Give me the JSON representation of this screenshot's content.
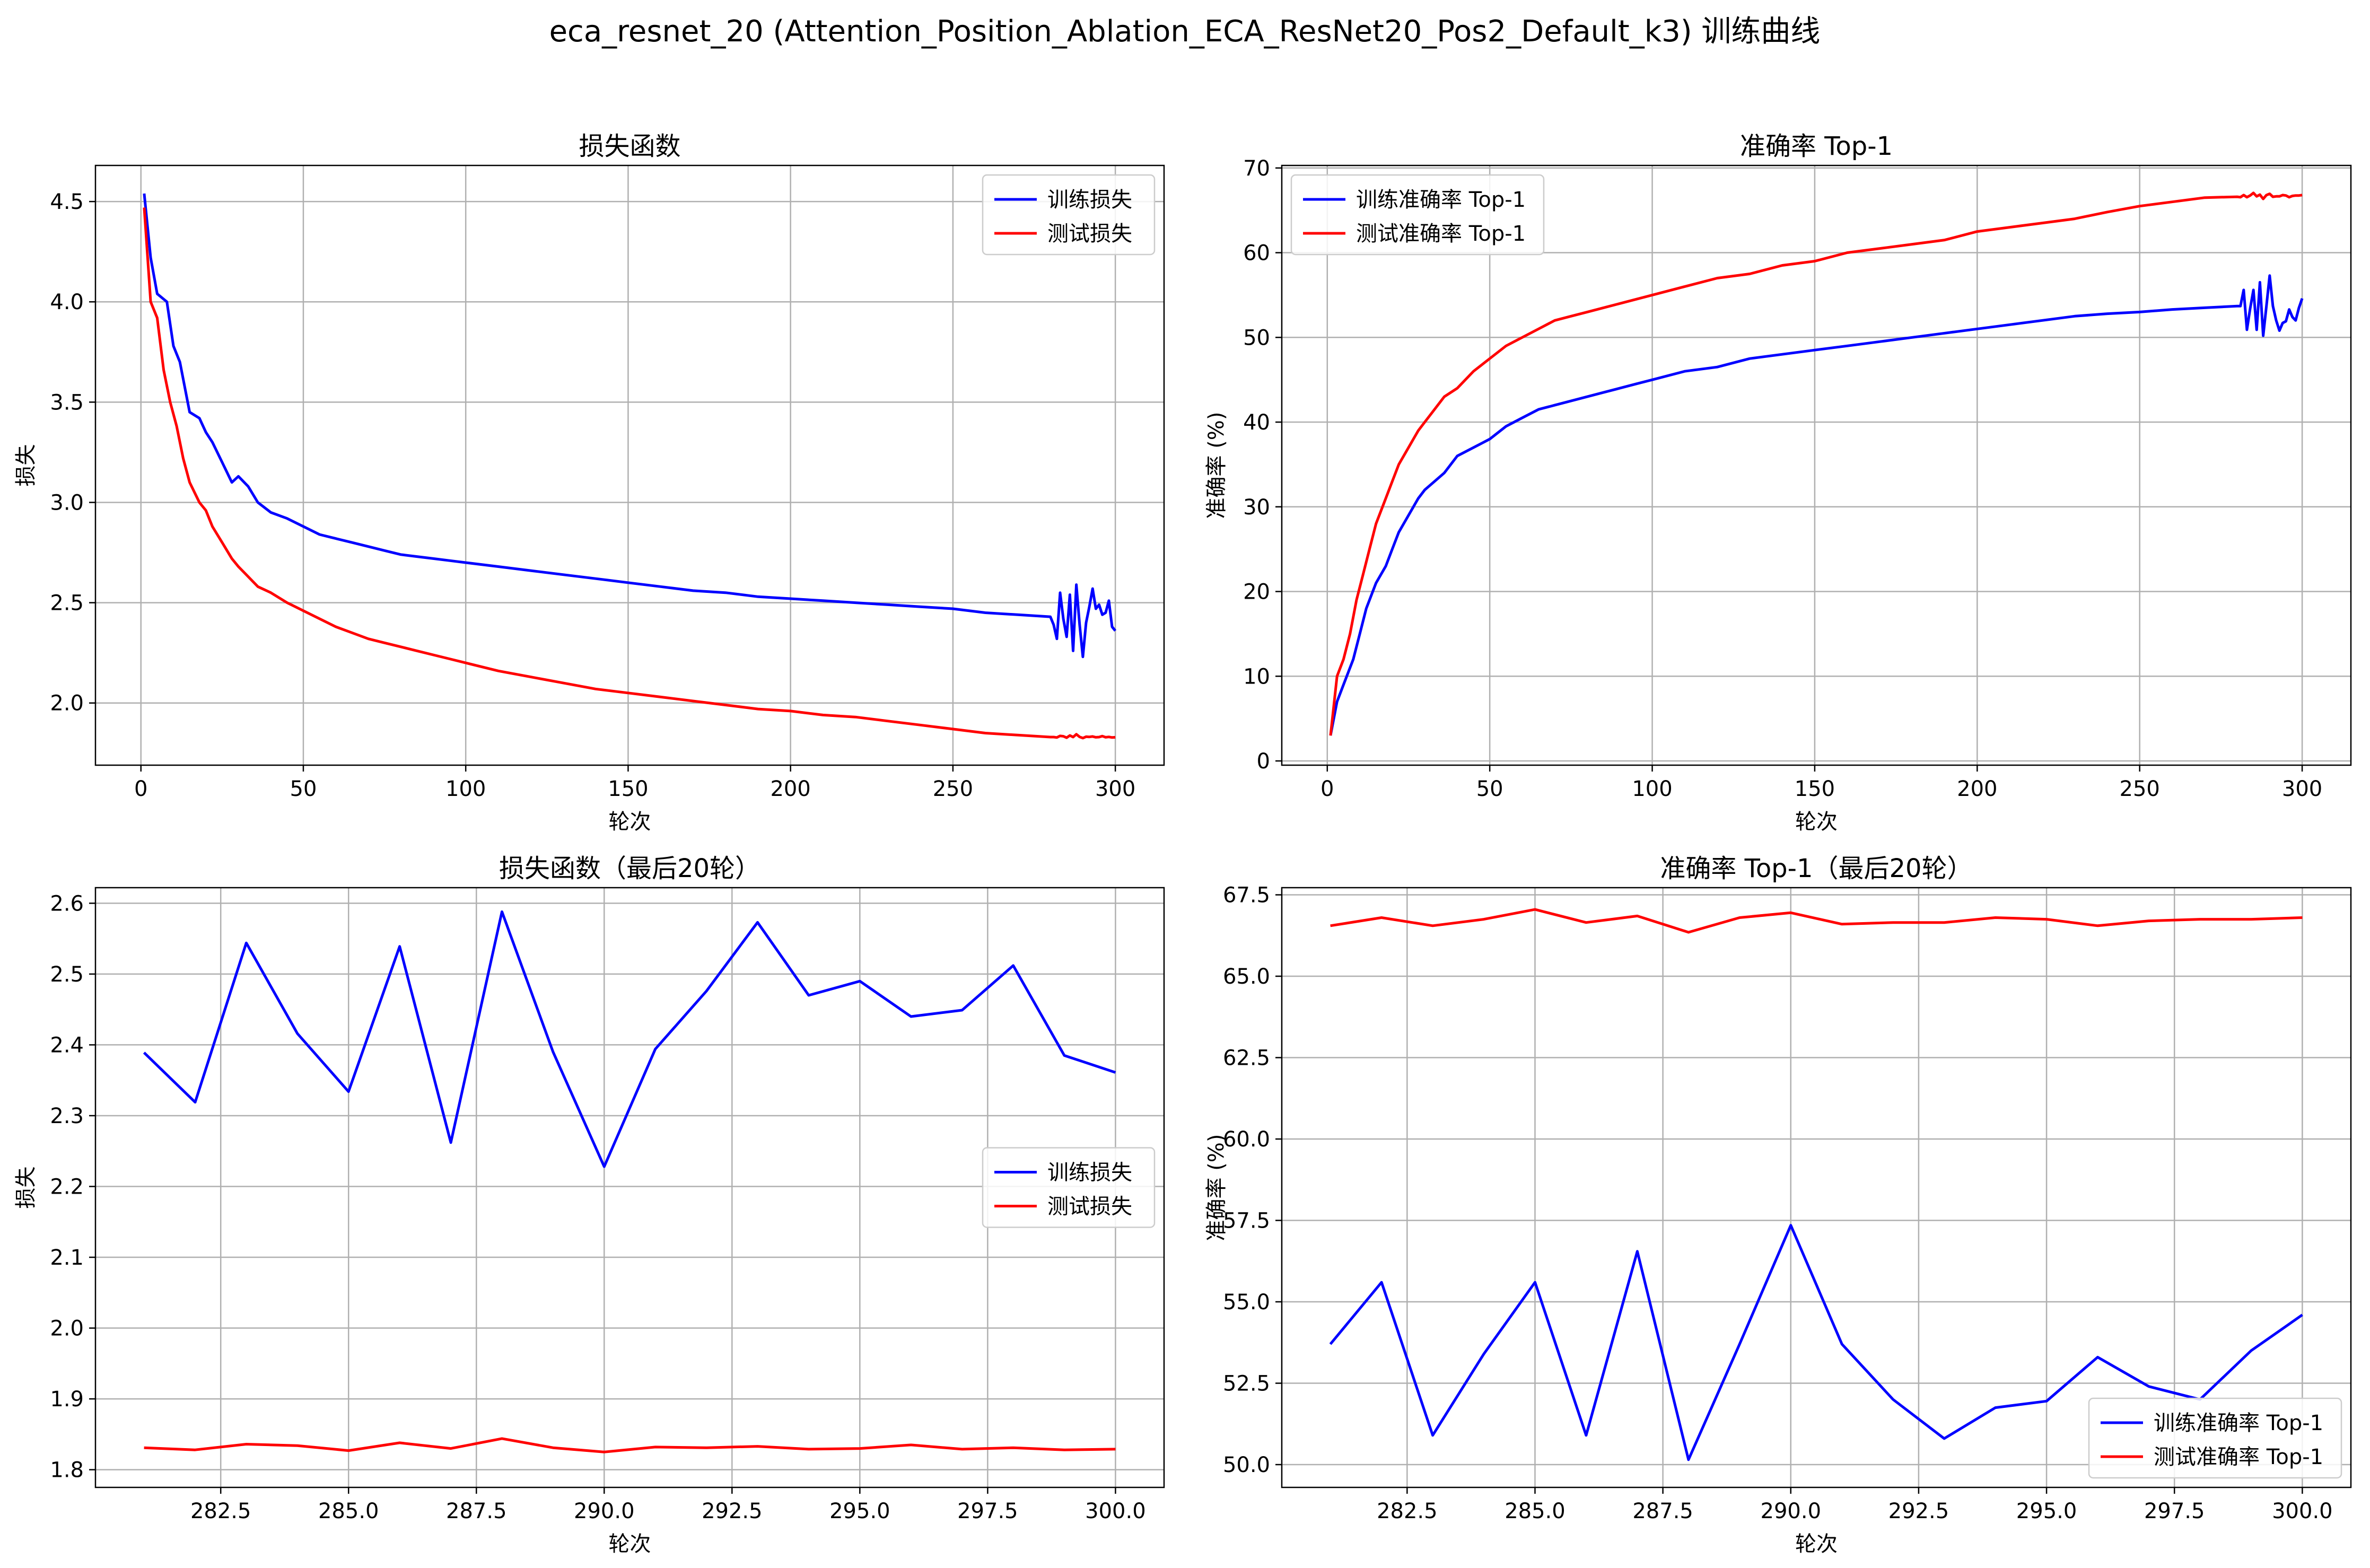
{
  "figure": {
    "suptitle": "eca_resnet_20 (Attention_Position_Ablation_ECA_ResNet20_Pos2_Default_k3) 训练曲线"
  },
  "colors": {
    "train": "#0000ff",
    "test": "#ff0000",
    "grid": "#b0b0b0"
  },
  "chart_data": [
    {
      "id": "loss_full",
      "type": "line",
      "title": "损失函数",
      "xlabel": "轮次",
      "ylabel": "损失",
      "xlim": [
        -14,
        315
      ],
      "ylim": [
        1.69,
        4.68
      ],
      "xticks": [
        0,
        50,
        100,
        150,
        200,
        250,
        300
      ],
      "xtick_labels": [
        "0",
        "50",
        "100",
        "150",
        "200",
        "250",
        "300"
      ],
      "yticks": [
        2.0,
        2.5,
        3.0,
        3.5,
        4.0,
        4.5
      ],
      "ytick_labels": [
        "2.0",
        "2.5",
        "3.0",
        "3.5",
        "4.0",
        "4.5"
      ],
      "grid": true,
      "legend": "upper right",
      "series": [
        {
          "name": "训练损失",
          "color": "train",
          "x": [
            1,
            3,
            5,
            8,
            10,
            12,
            15,
            18,
            20,
            22,
            25,
            28,
            30,
            33,
            36,
            40,
            45,
            50,
            55,
            60,
            65,
            70,
            75,
            80,
            85,
            90,
            95,
            100,
            110,
            120,
            130,
            140,
            150,
            160,
            170,
            180,
            190,
            200,
            210,
            220,
            230,
            240,
            250,
            260,
            270,
            280,
            281,
            282,
            283,
            284,
            285,
            286,
            287,
            288,
            289,
            290,
            291,
            292,
            293,
            294,
            295,
            296,
            297,
            298,
            299,
            300
          ],
          "y": [
            4.54,
            4.22,
            4.04,
            4.0,
            3.78,
            3.7,
            3.45,
            3.42,
            3.35,
            3.3,
            3.2,
            3.1,
            3.13,
            3.08,
            3.0,
            2.95,
            2.92,
            2.88,
            2.84,
            2.82,
            2.8,
            2.78,
            2.76,
            2.74,
            2.73,
            2.72,
            2.71,
            2.7,
            2.68,
            2.66,
            2.64,
            2.62,
            2.6,
            2.58,
            2.56,
            2.55,
            2.53,
            2.52,
            2.51,
            2.5,
            2.49,
            2.48,
            2.47,
            2.45,
            2.44,
            2.43,
            2.39,
            2.32,
            2.55,
            2.42,
            2.33,
            2.54,
            2.26,
            2.59,
            2.39,
            2.23,
            2.4,
            2.48,
            2.57,
            2.47,
            2.49,
            2.44,
            2.45,
            2.51,
            2.38,
            2.36
          ]
        },
        {
          "name": "测试损失",
          "color": "test",
          "x": [
            1,
            3,
            5,
            7,
            9,
            11,
            13,
            15,
            18,
            20,
            22,
            25,
            28,
            30,
            33,
            36,
            40,
            45,
            50,
            55,
            60,
            65,
            70,
            75,
            80,
            85,
            90,
            95,
            100,
            110,
            120,
            130,
            140,
            150,
            160,
            170,
            180,
            190,
            200,
            210,
            220,
            230,
            240,
            250,
            260,
            270,
            280,
            281,
            282,
            283,
            284,
            285,
            286,
            287,
            288,
            289,
            290,
            291,
            292,
            293,
            294,
            295,
            296,
            297,
            298,
            299,
            300
          ],
          "y": [
            4.47,
            4.0,
            3.92,
            3.66,
            3.5,
            3.38,
            3.22,
            3.1,
            3.0,
            2.96,
            2.88,
            2.8,
            2.72,
            2.68,
            2.63,
            2.58,
            2.55,
            2.5,
            2.46,
            2.42,
            2.38,
            2.35,
            2.32,
            2.3,
            2.28,
            2.26,
            2.24,
            2.22,
            2.2,
            2.16,
            2.13,
            2.1,
            2.07,
            2.05,
            2.03,
            2.01,
            1.99,
            1.97,
            1.96,
            1.94,
            1.93,
            1.91,
            1.89,
            1.87,
            1.85,
            1.84,
            1.83,
            1.83,
            1.828,
            1.836,
            1.834,
            1.827,
            1.838,
            1.83,
            1.844,
            1.831,
            1.825,
            1.832,
            1.831,
            1.833,
            1.829,
            1.83,
            1.835,
            1.829,
            1.831,
            1.828,
            1.829
          ]
        }
      ]
    },
    {
      "id": "acc_full",
      "type": "line",
      "title": "准确率 Top-1",
      "xlabel": "轮次",
      "ylabel": "准确率 (%)",
      "xlim": [
        -14,
        315
      ],
      "ylim": [
        -0.5,
        70.3
      ],
      "xticks": [
        0,
        50,
        100,
        150,
        200,
        250,
        300
      ],
      "xtick_labels": [
        "0",
        "50",
        "100",
        "150",
        "200",
        "250",
        "300"
      ],
      "yticks": [
        0,
        10,
        20,
        30,
        40,
        50,
        60,
        70
      ],
      "ytick_labels": [
        "0",
        "10",
        "20",
        "30",
        "40",
        "50",
        "60",
        "70"
      ],
      "grid": true,
      "legend": "upper left",
      "series": [
        {
          "name": "训练准确率 Top-1",
          "color": "train",
          "x": [
            1,
            3,
            5,
            8,
            10,
            12,
            15,
            18,
            20,
            22,
            25,
            28,
            30,
            33,
            36,
            40,
            45,
            50,
            55,
            60,
            65,
            70,
            75,
            80,
            85,
            90,
            95,
            100,
            110,
            120,
            130,
            140,
            150,
            160,
            170,
            180,
            190,
            200,
            210,
            220,
            230,
            240,
            250,
            260,
            270,
            280,
            281,
            282,
            283,
            284,
            285,
            286,
            287,
            288,
            289,
            290,
            291,
            292,
            293,
            294,
            295,
            296,
            297,
            298,
            299,
            300
          ],
          "y": [
            3,
            7,
            9,
            12,
            15,
            18,
            21,
            23,
            25,
            27,
            29,
            31,
            32,
            33,
            34,
            36,
            37,
            38,
            39.5,
            40.5,
            41.5,
            42,
            42.5,
            43,
            43.5,
            44,
            44.5,
            45,
            46,
            46.5,
            47.5,
            48,
            48.5,
            49,
            49.5,
            50,
            50.5,
            51,
            51.5,
            52,
            52.5,
            52.8,
            53,
            53.3,
            53.5,
            53.7,
            53.7,
            55.6,
            50.9,
            53.4,
            55.6,
            50.9,
            56.5,
            50.2,
            53.7,
            57.3,
            53.7,
            52.0,
            50.8,
            51.7,
            51.9,
            53.3,
            52.4,
            52.0,
            53.5,
            54.6
          ]
        },
        {
          "name": "测试准确率 Top-1",
          "color": "test",
          "x": [
            1,
            3,
            5,
            7,
            9,
            11,
            13,
            15,
            18,
            20,
            22,
            25,
            28,
            30,
            33,
            36,
            40,
            45,
            50,
            55,
            60,
            65,
            70,
            75,
            80,
            85,
            90,
            95,
            100,
            110,
            120,
            130,
            140,
            150,
            160,
            170,
            180,
            190,
            200,
            210,
            220,
            230,
            240,
            250,
            260,
            270,
            280,
            281,
            282,
            283,
            284,
            285,
            286,
            287,
            288,
            289,
            290,
            291,
            292,
            293,
            294,
            295,
            296,
            297,
            298,
            299,
            300
          ],
          "y": [
            3,
            10,
            12,
            15,
            19,
            22,
            25,
            28,
            31,
            33,
            35,
            37,
            39,
            40,
            41.5,
            43,
            44,
            46,
            47.5,
            49,
            50,
            51,
            52,
            52.5,
            53,
            53.5,
            54,
            54.5,
            55,
            56,
            57,
            57.5,
            58.5,
            59,
            60,
            60.5,
            61,
            61.5,
            62.5,
            63,
            63.5,
            64,
            64.8,
            65.5,
            66,
            66.5,
            66.6,
            66.55,
            66.8,
            66.55,
            66.75,
            67.05,
            66.65,
            66.85,
            66.35,
            66.8,
            66.95,
            66.6,
            66.65,
            66.65,
            66.8,
            66.75,
            66.55,
            66.7,
            66.75,
            66.75,
            66.8
          ]
        }
      ]
    },
    {
      "id": "loss_last20",
      "type": "line",
      "title": "损失函数（最后20轮）",
      "xlabel": "轮次",
      "ylabel": "损失",
      "xlim": [
        280.05,
        300.95
      ],
      "ylim": [
        1.775,
        2.622
      ],
      "xticks": [
        282.5,
        285.0,
        287.5,
        290.0,
        292.5,
        295.0,
        297.5,
        300.0
      ],
      "xtick_labels": [
        "282.5",
        "285.0",
        "287.5",
        "290.0",
        "292.5",
        "295.0",
        "297.5",
        "300.0"
      ],
      "yticks": [
        1.8,
        1.9,
        2.0,
        2.1,
        2.2,
        2.3,
        2.4,
        2.5,
        2.6
      ],
      "ytick_labels": [
        "1.8",
        "1.9",
        "2.0",
        "2.1",
        "2.2",
        "2.3",
        "2.4",
        "2.5",
        "2.6"
      ],
      "grid": true,
      "legend": "center right",
      "series": [
        {
          "name": "训练损失",
          "color": "train",
          "x": [
            281,
            282,
            283,
            284,
            285,
            286,
            287,
            288,
            289,
            290,
            291,
            292,
            293,
            294,
            295,
            296,
            297,
            298,
            299,
            300
          ],
          "y": [
            2.389,
            2.319,
            2.544,
            2.416,
            2.334,
            2.539,
            2.262,
            2.588,
            2.39,
            2.228,
            2.394,
            2.476,
            2.573,
            2.47,
            2.49,
            2.44,
            2.449,
            2.512,
            2.385,
            2.361
          ]
        },
        {
          "name": "测试损失",
          "color": "test",
          "x": [
            281,
            282,
            283,
            284,
            285,
            286,
            287,
            288,
            289,
            290,
            291,
            292,
            293,
            294,
            295,
            296,
            297,
            298,
            299,
            300
          ],
          "y": [
            1.831,
            1.828,
            1.836,
            1.834,
            1.827,
            1.838,
            1.83,
            1.844,
            1.831,
            1.825,
            1.832,
            1.831,
            1.833,
            1.829,
            1.83,
            1.835,
            1.829,
            1.831,
            1.828,
            1.829
          ]
        }
      ]
    },
    {
      "id": "acc_last20",
      "type": "line",
      "title": "准确率 Top-1（最后20轮）",
      "xlabel": "轮次",
      "ylabel": "准确率 (%)",
      "xlim": [
        280.05,
        300.95
      ],
      "ylim": [
        49.3,
        67.72
      ],
      "xticks": [
        282.5,
        285.0,
        287.5,
        290.0,
        292.5,
        295.0,
        297.5,
        300.0
      ],
      "xtick_labels": [
        "282.5",
        "285.0",
        "287.5",
        "290.0",
        "292.5",
        "295.0",
        "297.5",
        "300.0"
      ],
      "yticks": [
        50.0,
        52.5,
        55.0,
        57.5,
        60.0,
        62.5,
        65.0,
        67.5
      ],
      "ytick_labels": [
        "50.0",
        "52.5",
        "55.0",
        "57.5",
        "60.0",
        "62.5",
        "65.0",
        "67.5"
      ],
      "grid": true,
      "legend": "lower right",
      "series": [
        {
          "name": "训练准确率 Top-1",
          "color": "train",
          "x": [
            281,
            282,
            283,
            284,
            285,
            286,
            287,
            288,
            289,
            290,
            291,
            292,
            293,
            294,
            295,
            296,
            297,
            298,
            299,
            300
          ],
          "y": [
            53.7,
            55.6,
            50.9,
            53.4,
            55.6,
            50.9,
            56.55,
            50.15,
            53.7,
            57.35,
            53.7,
            52.0,
            50.8,
            51.75,
            51.95,
            53.3,
            52.4,
            52.0,
            53.5,
            54.6
          ]
        },
        {
          "name": "测试准确率 Top-1",
          "color": "test",
          "x": [
            281,
            282,
            283,
            284,
            285,
            286,
            287,
            288,
            289,
            290,
            291,
            292,
            293,
            294,
            295,
            296,
            297,
            298,
            299,
            300
          ],
          "y": [
            66.55,
            66.8,
            66.55,
            66.75,
            67.05,
            66.65,
            66.85,
            66.35,
            66.8,
            66.95,
            66.6,
            66.65,
            66.65,
            66.8,
            66.75,
            66.55,
            66.7,
            66.75,
            66.75,
            66.8
          ]
        }
      ]
    }
  ]
}
